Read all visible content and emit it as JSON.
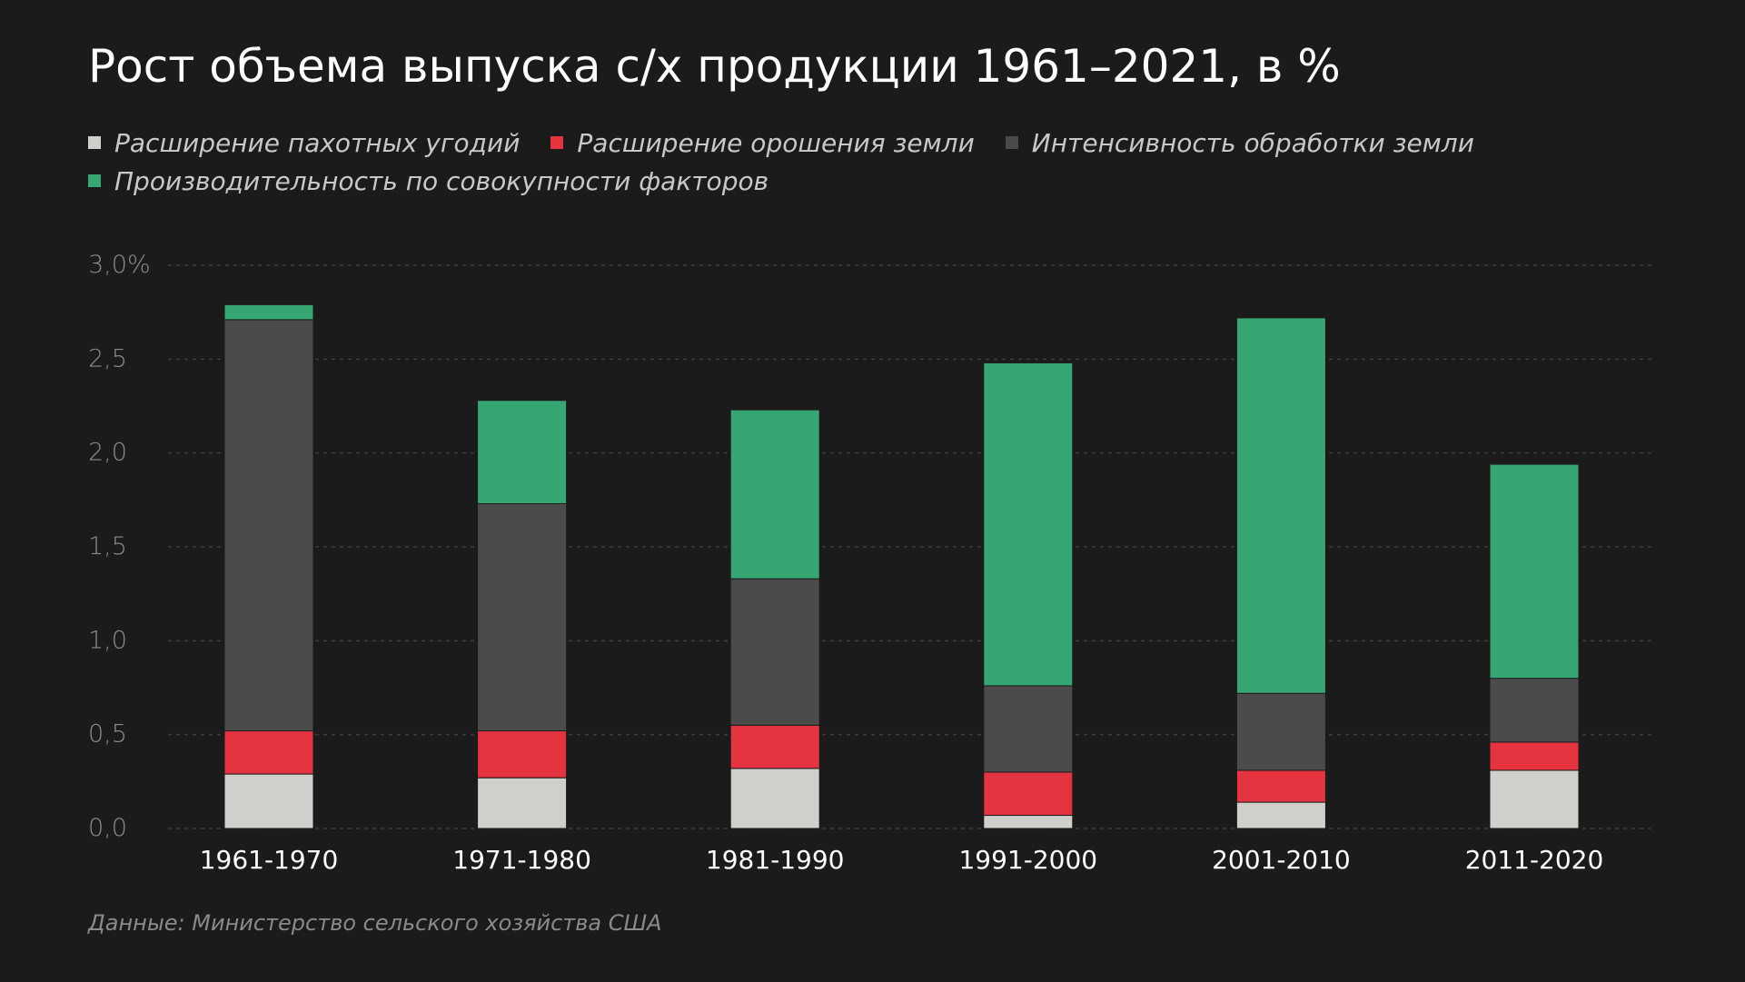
{
  "title": "Рост объема выпуска с/х продукции 1961–2021, в %",
  "source": "Данные: Министерство сельского хозяйства США",
  "colors": {
    "background": "#1b1b1b",
    "land": "#cfcfcb",
    "irrigation": "#e5343f",
    "intensity": "#4b4b4b",
    "tfp": "#36a673",
    "grid": "#3e3e3e",
    "tick_text": "#8c8c8c",
    "category_text": "#ffffff"
  },
  "legend": [
    {
      "label": "Расширение пахотных угодий",
      "color": "#cfcfcb"
    },
    {
      "label": "Расширение орошения земли",
      "color": "#e5343f"
    },
    {
      "label": "Интенсивность обработки земли",
      "color": "#4b4b4b"
    },
    {
      "label": "Производительность по совокупности факторов",
      "color": "#36a673"
    }
  ],
  "chart_data": {
    "type": "bar",
    "stacked": true,
    "title": "Рост объема выпуска с/х продукции 1961–2021, в %",
    "categories": [
      "1961-1970",
      "1971-1980",
      "1981-1990",
      "1991-2000",
      "2001-2010",
      "2011-2020"
    ],
    "series": [
      {
        "name": "Расширение пахотных угодий",
        "color": "#cfcfcb",
        "values": [
          0.29,
          0.27,
          0.32,
          0.07,
          0.14,
          0.31
        ]
      },
      {
        "name": "Расширение орошения земли",
        "color": "#e5343f",
        "values": [
          0.23,
          0.25,
          0.23,
          0.23,
          0.17,
          0.15
        ]
      },
      {
        "name": "Интенсивность обработки земли",
        "color": "#4b4b4b",
        "values": [
          2.19,
          1.21,
          0.78,
          0.46,
          0.41,
          0.34
        ]
      },
      {
        "name": "Производительность по совокупности факторов",
        "color": "#36a673",
        "values": [
          0.08,
          0.55,
          0.9,
          1.72,
          2.0,
          1.14
        ]
      }
    ],
    "y_ticks": [
      "0,0",
      "0,5",
      "1,0",
      "1,5",
      "2,0",
      "2,5",
      "3,0%"
    ],
    "ylim": [
      0,
      3.0
    ],
    "grid": true,
    "legend_position": "top-left"
  }
}
